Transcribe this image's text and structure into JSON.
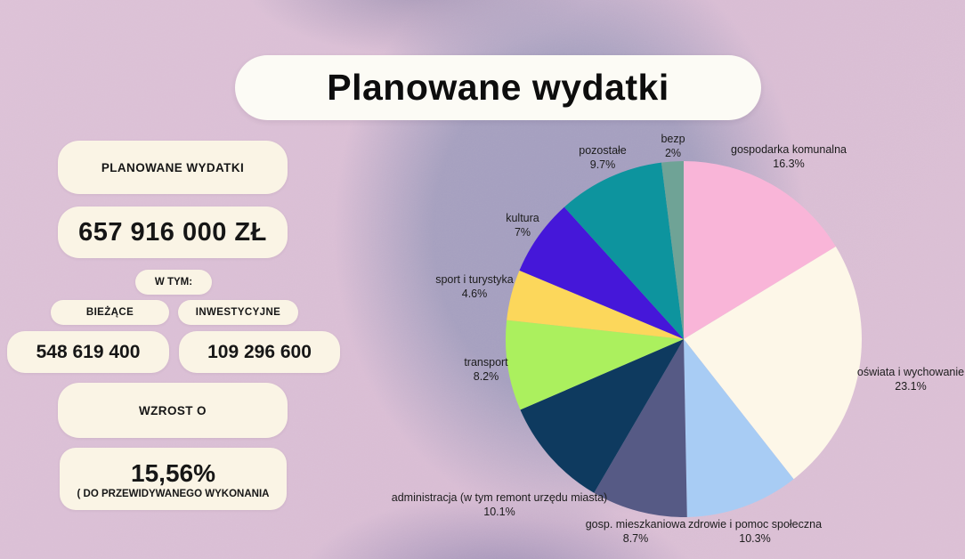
{
  "title": "Planowane wydatki",
  "panel": {
    "heading": "PLANOWANE WYDATKI",
    "total": "657 916 000 ZŁ",
    "in_that": "W TYM:",
    "current_label": "BIEŻĄCE",
    "investment_label": "INWESTYCYJNE",
    "current_value": "548 619 400",
    "investment_value": "109 296 600",
    "growth_label": "WZROST O",
    "growth_value": "15,56%",
    "growth_note": "( DO  PRZEWIDYWANEGO WYKONANIA"
  },
  "chart_data": {
    "type": "pie",
    "title": "Planowane wydatki",
    "start_at": "12-oclock",
    "direction": "clockwise",
    "legend_position": "labels-around-pie",
    "slices": [
      {
        "id": "gospodarka-komunalna",
        "label": "gospodarka komunalna",
        "value": 16.3,
        "pct_label": "16.3%",
        "color": "#F9B5D8"
      },
      {
        "id": "oswiata-i-wychowanie",
        "label": "oświata i wychowanie",
        "value": 23.1,
        "pct_label": "23.1%",
        "color": "#FDF7E8"
      },
      {
        "id": "zdrowie-i-pomoc-spoleczna",
        "label": "zdrowie i pomoc społeczna",
        "value": 10.3,
        "pct_label": "10.3%",
        "color": "#A8CCF4"
      },
      {
        "id": "gosp-mieszkaniowa",
        "label": "gosp. mieszkaniowa",
        "value": 8.7,
        "pct_label": "8.7%",
        "color": "#565A85"
      },
      {
        "id": "administracja",
        "label": "administracja (w tym remont urzędu miasta)",
        "value": 10.1,
        "pct_label": "10.1%",
        "color": "#0E3A5F"
      },
      {
        "id": "transport",
        "label": "transport",
        "value": 8.2,
        "pct_label": "8.2%",
        "color": "#ABF05E"
      },
      {
        "id": "sport-i-turystyka",
        "label": "sport i turystyka",
        "value": 4.6,
        "pct_label": "4.6%",
        "color": "#FCD75B"
      },
      {
        "id": "kultura",
        "label": "kultura",
        "value": 7,
        "pct_label": "7%",
        "color": "#4517D9"
      },
      {
        "id": "pozostale",
        "label": "pozostałe",
        "value": 9.7,
        "pct_label": "9.7%",
        "color": "#0D949E"
      },
      {
        "id": "bezp",
        "label": "bezp",
        "value": 2,
        "pct_label": "2%",
        "color": "#6FA396"
      }
    ]
  },
  "colors": {
    "background_pink": "#DCC1D6",
    "background_lavender": "#A6A0BF",
    "card_cream": "#FAF4E5",
    "title_card": "#FCFBF5",
    "text": "#161616"
  }
}
